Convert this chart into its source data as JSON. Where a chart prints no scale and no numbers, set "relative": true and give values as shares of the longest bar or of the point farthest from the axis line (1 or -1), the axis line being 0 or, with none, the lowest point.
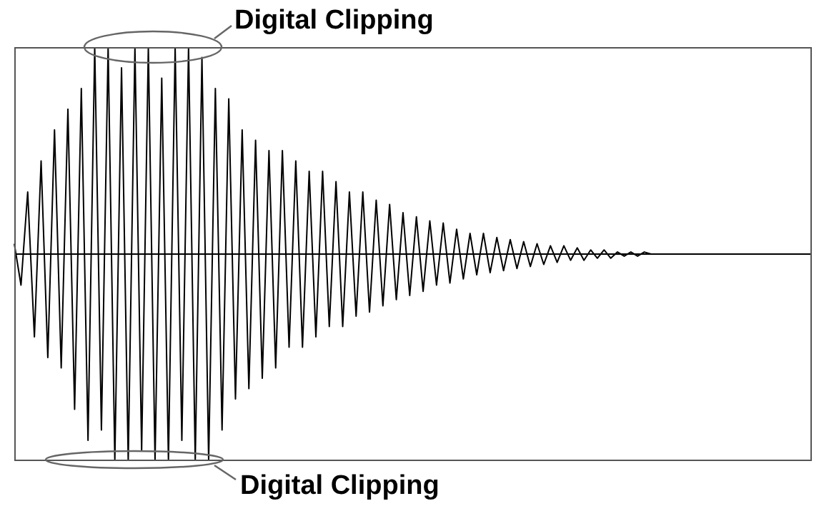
{
  "chart_data": {
    "type": "line",
    "relative": true,
    "color": "#000000",
    "annotations": [
      "Digital Clipping",
      "Digital Clipping"
    ],
    "categories": [
      null,
      null,
      null,
      null,
      null,
      null,
      null,
      null,
      null,
      null,
      null,
      null,
      null,
      null,
      null,
      null,
      null,
      null,
      null,
      null,
      null,
      null,
      null,
      null,
      null,
      null,
      null,
      null,
      null,
      null,
      null,
      null,
      null,
      null,
      null,
      null,
      null,
      null,
      null,
      null,
      null,
      null,
      null,
      null,
      null,
      null,
      null,
      null,
      null,
      null,
      null,
      null,
      null,
      null,
      null,
      null,
      null,
      null,
      null,
      null,
      null,
      null,
      null,
      null,
      null,
      null,
      null,
      null,
      null,
      null,
      null,
      null,
      null,
      null,
      null,
      null,
      null,
      null,
      null,
      null,
      null,
      null,
      null,
      null,
      null,
      null,
      null,
      null,
      null,
      null,
      null,
      null,
      null,
      null,
      null,
      null,
      null,
      null,
      null,
      null,
      null,
      null,
      null,
      null,
      null,
      null,
      null,
      null,
      null,
      null,
      null,
      null,
      null,
      null,
      null,
      null,
      null,
      null,
      null,
      null
    ],
    "values": [
      0.05,
      -0.15,
      0.3,
      -0.4,
      0.45,
      -0.5,
      0.6,
      -0.55,
      0.7,
      -0.75,
      0.8,
      -0.9,
      1,
      -0.85,
      1,
      -1,
      0.9,
      -1,
      1,
      -0.95,
      1,
      -1,
      0.85,
      -1,
      1,
      -0.9,
      1,
      -1,
      0.95,
      -1,
      0.8,
      -0.85,
      0.75,
      -0.7,
      0.6,
      -0.65,
      0.55,
      -0.6,
      0.5,
      -0.55,
      0.5,
      -0.45,
      0.45,
      -0.45,
      0.4,
      -0.4,
      0.4,
      -0.35,
      0.35,
      -0.35,
      0.3,
      -0.3,
      0.3,
      -0.28,
      0.26,
      -0.25,
      0.24,
      -0.22,
      0.2,
      -0.2,
      0.18,
      -0.18,
      0.16,
      -0.15,
      0.15,
      -0.14,
      0.12,
      -0.12,
      0.1,
      -0.1,
      0.1,
      -0.09,
      0.08,
      -0.08,
      0.07,
      -0.07,
      0.06,
      -0.06,
      0.05,
      -0.05,
      0.04,
      -0.04,
      0.04,
      -0.03,
      0.03,
      -0.03,
      0.02,
      -0.02,
      0.02,
      -0.02,
      0.01,
      -0.01,
      0.01,
      -0.01,
      0.01,
      0,
      0,
      0,
      0,
      0,
      0,
      0,
      0,
      0,
      0,
      0,
      0,
      0,
      0,
      0,
      0,
      0,
      0,
      0,
      0,
      0,
      0,
      0,
      0,
      0
    ]
  }
}
